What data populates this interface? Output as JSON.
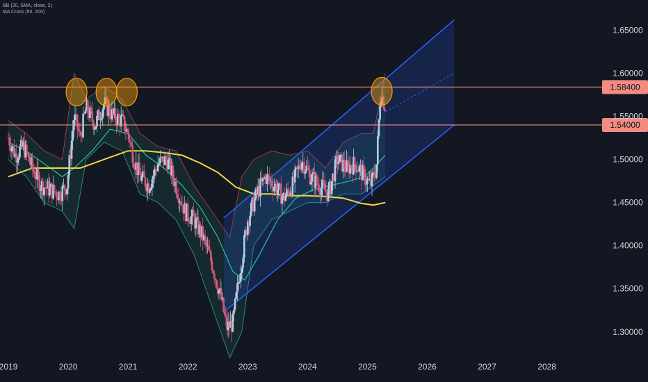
{
  "indicators": {
    "bb_label": "BB (20, SMA, close, 2)",
    "ma_label": "MA Cross (50, 200)"
  },
  "colors": {
    "background": "#131722",
    "candle_up": "#b3cde0",
    "candle_down": "#d1577a",
    "bb_band": "#2c8a7a",
    "bb_fill": "#1b4a45",
    "bb_upper_tint": "#9c3b50",
    "ma50": "#26c6a0",
    "ma200": "#f5d547",
    "channel": "#2962ff",
    "level_line": "#f28b82",
    "highlight_circle": "#f59e0b"
  },
  "chart_data": {
    "type": "candlestick",
    "y_ticks": [
      "1.65000",
      "1.60000",
      "1.55000",
      "1.50000",
      "1.45000",
      "1.40000",
      "1.35000",
      "1.30000"
    ],
    "y_tick_values": [
      1.65,
      1.6,
      1.55,
      1.5,
      1.45,
      1.4,
      1.35,
      1.3
    ],
    "x_ticks": [
      "2019",
      "2020",
      "2021",
      "2022",
      "2023",
      "2024",
      "2025",
      "2026",
      "2027",
      "2028"
    ],
    "x_tick_values": [
      2019,
      2020,
      2021,
      2022,
      2023,
      2024,
      2025,
      2026,
      2027,
      2028
    ],
    "ylim": [
      1.27,
      1.685
    ],
    "xlim": [
      2019.0,
      2029.05
    ],
    "horizontal_levels": [
      {
        "value": 1.584,
        "label": "1.58400"
      },
      {
        "value": 1.54,
        "label": "1.54000"
      }
    ],
    "channel": {
      "upper": {
        "x": [
          2022.6,
          2026.45
        ],
        "y": [
          1.432,
          1.662
        ]
      },
      "lower": {
        "x": [
          2022.6,
          2026.45
        ],
        "y": [
          1.323,
          1.54
        ]
      },
      "midline_dashed": {
        "x": [
          2025.3,
          2026.45
        ],
        "y": [
          1.555,
          1.6
        ]
      }
    },
    "highlight_circles": [
      {
        "x": 2020.14,
        "y": 1.583
      },
      {
        "x": 2020.64,
        "y": 1.583
      },
      {
        "x": 2020.98,
        "y": 1.583
      },
      {
        "x": 2025.24,
        "y": 1.584
      }
    ],
    "price_path": {
      "x": [
        2019.0,
        2019.12,
        2019.25,
        2019.4,
        2019.55,
        2019.7,
        2019.85,
        2019.98,
        2020.1,
        2020.2,
        2020.3,
        2020.45,
        2020.6,
        2020.75,
        2020.9,
        2021.0,
        2021.1,
        2021.2,
        2021.35,
        2021.5,
        2021.65,
        2021.8,
        2021.95,
        2022.1,
        2022.25,
        2022.4,
        2022.55,
        2022.65,
        2022.75,
        2022.85,
        2023.0,
        2023.15,
        2023.3,
        2023.45,
        2023.6,
        2023.75,
        2023.9,
        2024.05,
        2024.2,
        2024.35,
        2024.5,
        2024.65,
        2024.8,
        2024.95,
        2025.05,
        2025.15,
        2025.22,
        2025.3
      ],
      "y": [
        1.525,
        1.505,
        1.515,
        1.49,
        1.47,
        1.465,
        1.46,
        1.47,
        1.55,
        1.525,
        1.56,
        1.54,
        1.565,
        1.55,
        1.545,
        1.53,
        1.5,
        1.48,
        1.47,
        1.495,
        1.5,
        1.47,
        1.44,
        1.43,
        1.41,
        1.38,
        1.34,
        1.305,
        1.31,
        1.36,
        1.43,
        1.46,
        1.48,
        1.47,
        1.455,
        1.47,
        1.5,
        1.48,
        1.47,
        1.46,
        1.5,
        1.49,
        1.495,
        1.48,
        1.47,
        1.49,
        1.58,
        1.56
      ]
    },
    "ma200": {
      "x": [
        2019.0,
        2019.4,
        2019.8,
        2020.2,
        2020.6,
        2021.0,
        2021.3,
        2021.6,
        2021.9,
        2022.2,
        2022.5,
        2022.8,
        2023.1,
        2023.4,
        2023.7,
        2024.0,
        2024.3,
        2024.6,
        2024.9,
        2025.1,
        2025.3
      ],
      "y": [
        1.48,
        1.49,
        1.49,
        1.49,
        1.5,
        1.51,
        1.51,
        1.508,
        1.505,
        1.496,
        1.485,
        1.468,
        1.46,
        1.46,
        1.458,
        1.458,
        1.457,
        1.455,
        1.449,
        1.447,
        1.45
      ]
    },
    "ma50": {
      "x": [
        2019.0,
        2019.3,
        2019.6,
        2019.9,
        2020.1,
        2020.4,
        2020.7,
        2021.0,
        2021.3,
        2021.6,
        2021.9,
        2022.2,
        2022.5,
        2022.75,
        2022.95,
        2023.2,
        2023.5,
        2023.8,
        2024.1,
        2024.4,
        2024.7,
        2024.95,
        2025.1,
        2025.3
      ],
      "y": [
        1.52,
        1.51,
        1.495,
        1.48,
        1.49,
        1.51,
        1.535,
        1.53,
        1.505,
        1.49,
        1.47,
        1.445,
        1.41,
        1.37,
        1.36,
        1.39,
        1.43,
        1.455,
        1.465,
        1.47,
        1.475,
        1.48,
        1.49,
        1.505
      ]
    },
    "bb_upper": {
      "x": [
        2019.0,
        2019.3,
        2019.6,
        2019.9,
        2020.1,
        2020.3,
        2020.6,
        2020.9,
        2021.2,
        2021.5,
        2021.8,
        2022.1,
        2022.4,
        2022.7,
        2022.9,
        2023.1,
        2023.4,
        2023.7,
        2024.0,
        2024.3,
        2024.6,
        2024.9,
        2025.1,
        2025.3
      ],
      "y": [
        1.545,
        1.53,
        1.51,
        1.5,
        1.6,
        1.57,
        1.585,
        1.57,
        1.53,
        1.515,
        1.51,
        1.47,
        1.44,
        1.41,
        1.48,
        1.5,
        1.51,
        1.505,
        1.51,
        1.49,
        1.52,
        1.53,
        1.53,
        1.6
      ]
    },
    "bb_lower": {
      "x": [
        2019.0,
        2019.3,
        2019.6,
        2019.9,
        2020.1,
        2020.3,
        2020.6,
        2020.9,
        2021.2,
        2021.5,
        2021.8,
        2022.1,
        2022.4,
        2022.7,
        2022.9,
        2023.1,
        2023.4,
        2023.7,
        2024.0,
        2024.3,
        2024.6,
        2024.9,
        2025.1,
        2025.3
      ],
      "y": [
        1.5,
        1.48,
        1.45,
        1.44,
        1.42,
        1.5,
        1.52,
        1.51,
        1.46,
        1.45,
        1.43,
        1.39,
        1.33,
        1.27,
        1.3,
        1.4,
        1.43,
        1.44,
        1.45,
        1.45,
        1.46,
        1.46,
        1.47,
        1.48
      ]
    }
  }
}
